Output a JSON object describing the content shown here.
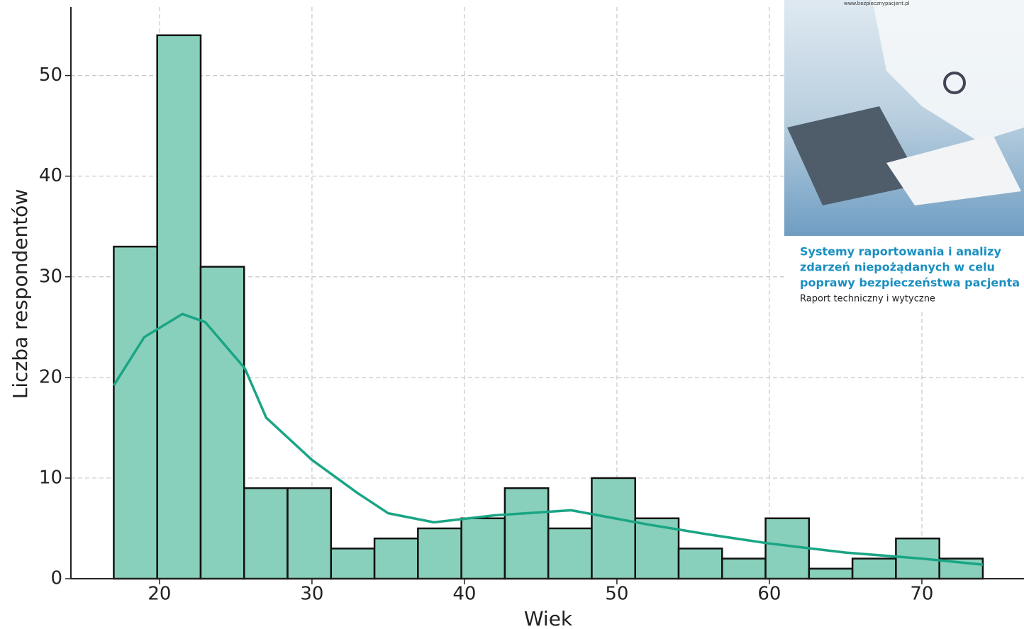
{
  "chart_data": {
    "type": "histogram",
    "x_label": "Wiek",
    "y_label": "Liczba respondentów",
    "bins": [
      17,
      19.85,
      22.7,
      25.55,
      28.4,
      31.25,
      34.1,
      36.95,
      39.8,
      42.65,
      45.5,
      48.35,
      51.2,
      54.05,
      56.9,
      59.75,
      62.6,
      65.45,
      68.3,
      71.15,
      74
    ],
    "values": [
      33,
      54,
      31,
      9,
      9,
      3,
      4,
      5,
      6,
      9,
      5,
      10,
      6,
      3,
      2,
      6,
      1,
      2,
      4,
      2
    ],
    "color": "#88d0bb",
    "kde": {
      "color": "#1aa585",
      "x": [
        17,
        19,
        21.5,
        23,
        25.6,
        27,
        30,
        33,
        35,
        38,
        42,
        47,
        52,
        56,
        60,
        65,
        70,
        74
      ],
      "values": [
        19.2,
        24,
        26.3,
        25.5,
        20.9,
        16,
        11.8,
        8.5,
        6.5,
        5.6,
        6.3,
        6.8,
        5.4,
        4.4,
        3.5,
        2.6,
        2.0,
        1.4
      ]
    },
    "xlim": [
      14.19,
      76.7
    ],
    "ylim": [
      0,
      56.8
    ],
    "xticks": [
      20,
      30,
      40,
      50,
      60,
      70
    ],
    "yticks": [
      0,
      10,
      20,
      30,
      40,
      50
    ],
    "grid": true
  },
  "inset": {
    "url": "www.bezpiecznypacjent.pl",
    "title_lines": [
      "Systemy raportowania i analizy",
      "zdarzeń niepożądanych w celu",
      "poprawy bezpieczeństwa pacjenta"
    ],
    "subtitle": "Raport techniczny i wytyczne"
  }
}
